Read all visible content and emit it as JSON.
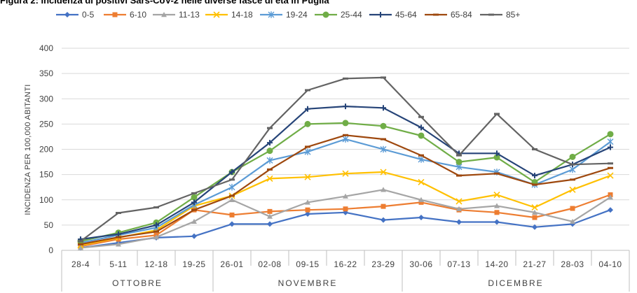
{
  "title": "Figura 2: Incidenza di positivi Sars-CoV-2 nelle diverse fasce di età in Puglia",
  "chart_data": {
    "type": "line",
    "ylabel": "INCIDENZA PER 100,000 ABITANTI",
    "xlabel": "",
    "ylim": [
      0,
      400
    ],
    "yticks": [
      0,
      50,
      100,
      150,
      200,
      250,
      300,
      350,
      400
    ],
    "grid": "horizontal",
    "legend_position": "top",
    "categories": [
      "28-4",
      "5-11",
      "12-18",
      "19-25",
      "26-01",
      "02-08",
      "09-15",
      "16-22",
      "23-29",
      "30-06",
      "07-13",
      "14-20",
      "21-27",
      "28-03",
      "04-10"
    ],
    "groups": [
      {
        "label": "OTTOBRE",
        "start": 0,
        "end": 3
      },
      {
        "label": "NOVEMBRE",
        "start": 4,
        "end": 8
      },
      {
        "label": "DICEMBRE",
        "start": 9,
        "end": 14
      }
    ],
    "series": [
      {
        "name": "0-5",
        "color": "#4472C4",
        "marker": "diamond",
        "values": [
          5,
          15,
          25,
          28,
          52,
          52,
          72,
          75,
          60,
          65,
          56,
          56,
          46,
          52,
          80
        ]
      },
      {
        "name": "6-10",
        "color": "#ED7D31",
        "marker": "square",
        "values": [
          8,
          22,
          30,
          80,
          70,
          77,
          80,
          82,
          87,
          95,
          80,
          75,
          65,
          83,
          110
        ]
      },
      {
        "name": "11-13",
        "color": "#A5A5A5",
        "marker": "triangle",
        "values": [
          5,
          12,
          26,
          57,
          100,
          67,
          95,
          107,
          120,
          100,
          82,
          88,
          75,
          57,
          105
        ]
      },
      {
        "name": "14-18",
        "color": "#FFC000",
        "marker": "x",
        "values": [
          10,
          25,
          40,
          88,
          108,
          142,
          145,
          152,
          155,
          135,
          97,
          110,
          85,
          120,
          148
        ]
      },
      {
        "name": "19-24",
        "color": "#5B9BD5",
        "marker": "star",
        "values": [
          15,
          30,
          45,
          90,
          125,
          178,
          195,
          220,
          200,
          180,
          165,
          155,
          130,
          160,
          215
        ]
      },
      {
        "name": "25-44",
        "color": "#70AD47",
        "marker": "circle",
        "values": [
          18,
          35,
          55,
          105,
          155,
          197,
          250,
          252,
          246,
          227,
          175,
          184,
          135,
          185,
          230
        ]
      },
      {
        "name": "45-64",
        "color": "#264478",
        "marker": "plus",
        "values": [
          22,
          32,
          50,
          95,
          155,
          213,
          280,
          285,
          282,
          243,
          192,
          192,
          148,
          170,
          204
        ]
      },
      {
        "name": "65-84",
        "color": "#9E480E",
        "marker": "dash",
        "values": [
          12,
          26,
          37,
          80,
          108,
          160,
          205,
          228,
          220,
          188,
          148,
          152,
          130,
          140,
          163
        ]
      },
      {
        "name": "85+",
        "color": "#636363",
        "marker": "dash",
        "values": [
          18,
          74,
          85,
          113,
          140,
          242,
          317,
          340,
          342,
          264,
          188,
          270,
          200,
          170,
          172
        ]
      }
    ]
  }
}
